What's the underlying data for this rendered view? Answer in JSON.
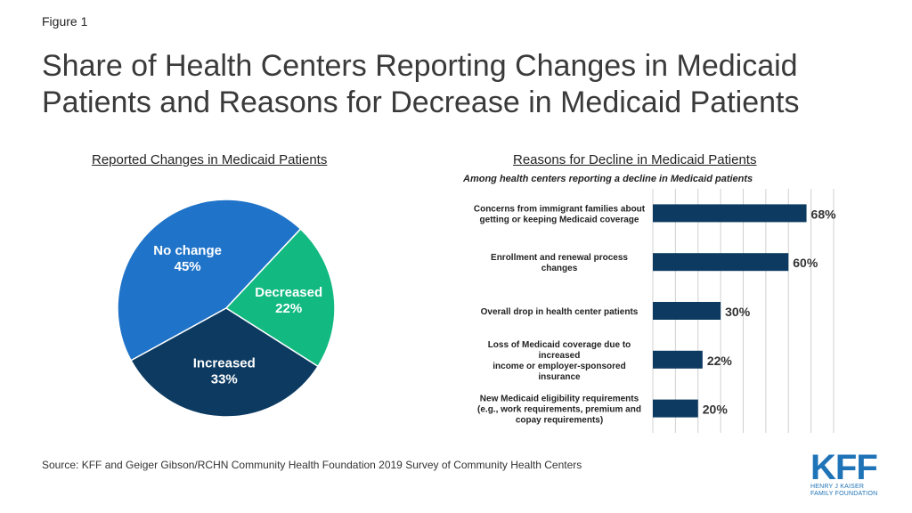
{
  "figure_label": "Figure 1",
  "title": "Share of Health Centers Reporting Changes in Medicaid Patients and Reasons for Decrease in Medicaid Patients",
  "source": "Source: KFF and Geiger Gibson/RCHN Community Health Foundation 2019 Survey of Community Health Centers",
  "logo": {
    "main": "KFF",
    "line1": "HENRY J KAISER",
    "line2": "FAMILY FOUNDATION"
  },
  "chart_data": [
    {
      "type": "pie",
      "title": "Reported Changes in Medicaid Patients",
      "slices": [
        {
          "label": "No change",
          "value": 45,
          "display": "45%",
          "color": "#1f73c8",
          "text_color": "#ffffff"
        },
        {
          "label": "Decreased",
          "value": 22,
          "display": "22%",
          "color": "#12b981",
          "text_color": "#ffffff"
        },
        {
          "label": "Increased",
          "value": 33,
          "display": "33%",
          "color": "#0c3a61",
          "text_color": "#ffffff"
        }
      ]
    },
    {
      "type": "bar",
      "orientation": "horizontal",
      "title": "Reasons for Decline in Medicaid Patients",
      "subtitle": "Among health centers reporting a decline in Medicaid patients",
      "categories": [
        [
          "Concerns from immigrant families about",
          "getting or keeping Medicaid coverage"
        ],
        [
          "Enrollment and renewal process",
          "changes"
        ],
        [
          "Overall drop in health center patients"
        ],
        [
          "Loss of Medicaid coverage due to",
          "increased",
          "income or employer-sponsored",
          "insurance"
        ],
        [
          "New Medicaid eligibility requirements",
          "(e.g., work requirements, premium and",
          "copay requirements)"
        ]
      ],
      "values": [
        68,
        60,
        30,
        22,
        20
      ],
      "value_labels": [
        "68%",
        "60%",
        "30%",
        "22%",
        "20%"
      ],
      "bar_color": "#0c3a61",
      "xlim": [
        0,
        80
      ],
      "grid": true
    }
  ]
}
